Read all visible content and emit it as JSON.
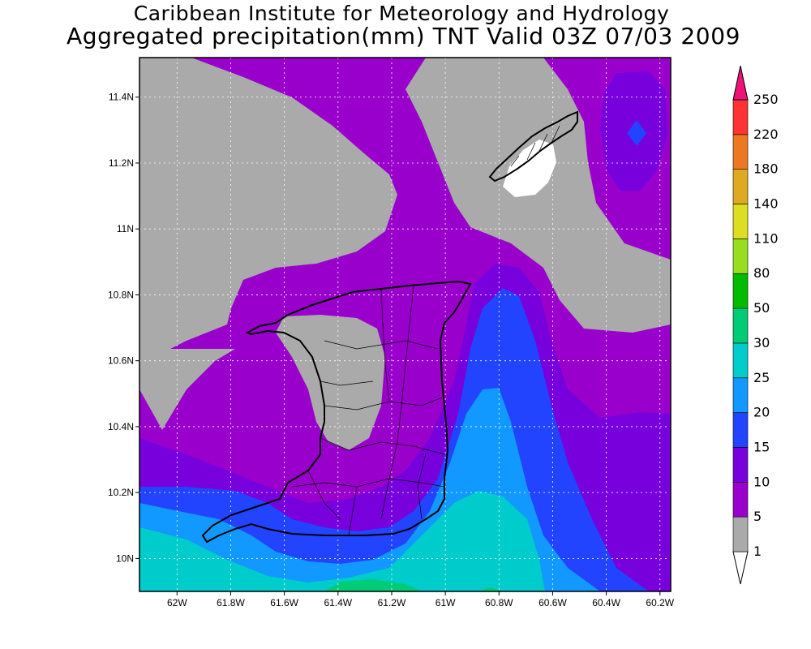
{
  "title": {
    "line1": "Caribbean Institute for Meteorology and Hydrology",
    "line2": "Aggregated precipitation(mm) TNT Valid 03Z 07/03 2009"
  },
  "axes": {
    "x_ticks": [
      "62W",
      "61.8W",
      "61.6W",
      "61.4W",
      "61.2W",
      "61W",
      "60.8W",
      "60.6W",
      "60.4W",
      "60.2W"
    ],
    "x_values": [
      -62.0,
      -61.8,
      -61.6,
      -61.4,
      -61.2,
      -61.0,
      -60.8,
      -60.6,
      -60.4,
      -60.2
    ],
    "y_ticks": [
      "10N",
      "10.2N",
      "10.4N",
      "10.6N",
      "10.8N",
      "11N",
      "11.2N",
      "11.4N"
    ],
    "y_values": [
      10.0,
      10.2,
      10.4,
      10.6,
      10.8,
      11.0,
      11.2,
      11.4
    ],
    "lon_range": [
      -62.14,
      -60.16
    ],
    "lat_range": [
      9.9,
      11.52
    ],
    "grid": "dotted"
  },
  "colorbar": {
    "levels": [
      "1",
      "5",
      "10",
      "15",
      "20",
      "25",
      "30",
      "50",
      "80",
      "110",
      "140",
      "180",
      "220",
      "250"
    ],
    "colors": [
      "#ffffff",
      "#aaaaaa",
      "#9900cc",
      "#7700dd",
      "#2244ff",
      "#1199ff",
      "#00cccc",
      "#00cc77",
      "#00bb00",
      "#99dd22",
      "#dddd22",
      "#ddaa22",
      "#ee7722",
      "#ff3333",
      "#ee1177"
    ]
  },
  "colors": {
    "grey_1_5": "#aaaaaa",
    "purple_5_10": "#9900cc",
    "violet_10_15": "#7700dd",
    "blue_15_20": "#2244ff",
    "lightblue_20_25": "#1199ff",
    "cyan_25_30": "#00cccc",
    "green_30_50": "#00cc77",
    "coast": "#000000"
  }
}
